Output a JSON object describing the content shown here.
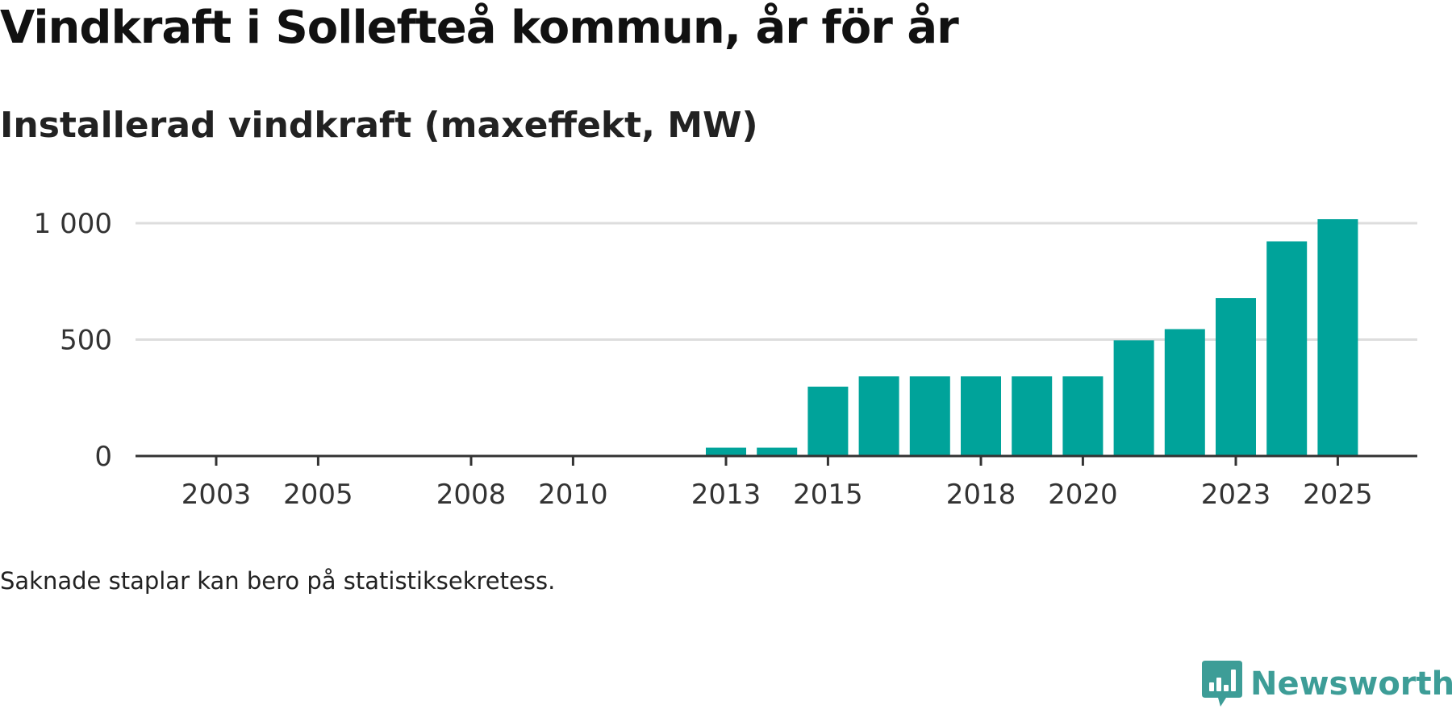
{
  "title": "Vindkraft i Sollefteå kommun, år för år",
  "subtitle": "Installerad vindkraft (maxeffekt, MW)",
  "note": "Saknade staplar kan bero på statistiksekretess.",
  "brand": {
    "name": "Newsworthy",
    "color": "#3d9d97",
    "icon": "chart-speech-bubble-icon"
  },
  "colors": {
    "bar": "#00a39a",
    "grid": "#dddddd",
    "axis": "#333333",
    "tick_text": "#333333"
  },
  "chart_data": {
    "type": "bar",
    "title": "Vindkraft i Sollefteå kommun, år för år",
    "ylabel": "Installerad vindkraft (maxeffekt, MW)",
    "xlabel": "",
    "x_range": [
      2002,
      2027
    ],
    "ylim": [
      0,
      1000
    ],
    "yticks": [
      0,
      500,
      1000
    ],
    "ytick_labels": [
      "0",
      "500",
      "1 000"
    ],
    "xticks": [
      2003,
      2005,
      2008,
      2010,
      2013,
      2015,
      2018,
      2020,
      2023,
      2025
    ],
    "grid": true,
    "categories": [
      2013,
      2014,
      2015,
      2016,
      2017,
      2018,
      2019,
      2020,
      2021,
      2022,
      2023,
      2024,
      2025
    ],
    "values": [
      36,
      36,
      298,
      342,
      342,
      342,
      342,
      342,
      497,
      545,
      678,
      922,
      1017
    ]
  }
}
